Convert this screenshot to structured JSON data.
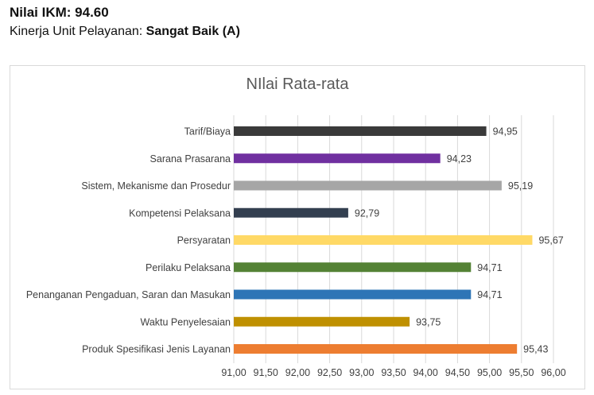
{
  "header": {
    "ikm_label": "Nilai IKM: 94.60",
    "kinerja_prefix": "Kinerja Unit Pelayanan: ",
    "kinerja_value": "Sangat Baik (A)"
  },
  "chart_data": {
    "type": "bar",
    "orientation": "horizontal",
    "title": "NIlai Rata-rata",
    "categories": [
      "Tarif/Biaya",
      "Sarana Prasarana",
      "Sistem, Mekanisme dan Prosedur",
      "Kompetensi Pelaksana",
      "Persyaratan",
      "Perilaku Pelaksana",
      "Penanganan Pengaduan, Saran dan Masukan",
      "Waktu Penyelesaian",
      "Produk Spesifikasi Jenis Layanan"
    ],
    "values": [
      94.95,
      94.23,
      95.19,
      92.79,
      95.67,
      94.71,
      94.71,
      93.75,
      95.43
    ],
    "value_labels": [
      "94,95",
      "94,23",
      "95,19",
      "92,79",
      "95,67",
      "94,71",
      "94,71",
      "93,75",
      "95,43"
    ],
    "colors": [
      "#3a3a3a",
      "#7030a0",
      "#a6a6a6",
      "#333f50",
      "#ffd966",
      "#548235",
      "#2e75b6",
      "#bf9000",
      "#ed7d31"
    ],
    "xlim": [
      91.0,
      96.0
    ],
    "xticks": [
      91.0,
      91.5,
      92.0,
      92.5,
      93.0,
      93.5,
      94.0,
      94.5,
      95.0,
      95.5,
      96.0
    ],
    "xtick_labels": [
      "91,00",
      "91,50",
      "92,00",
      "92,50",
      "93,00",
      "93,50",
      "94,00",
      "94,50",
      "95,00",
      "95,50",
      "96,00"
    ],
    "grid": "vertical",
    "legend": "none"
  }
}
